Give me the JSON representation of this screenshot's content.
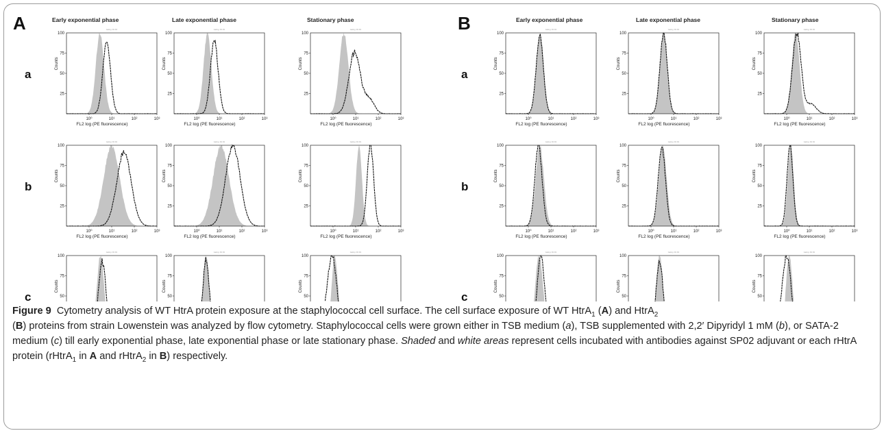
{
  "chart_data": {
    "type": "area",
    "figure_label": "Figure 9",
    "panels": [
      "A",
      "B"
    ],
    "columns": [
      "Early exponential phase",
      "Late exponential phase",
      "Stationary phase"
    ],
    "rows": [
      "a",
      "b",
      "c"
    ],
    "subtitle_text": "Gating: R1 R1",
    "xlabel": "FL2 log (PE fluorescence)",
    "ylabel": "Counts",
    "x_scale": "log",
    "x_ticks": [
      "10⁰",
      "10¹",
      "10²",
      "10³"
    ],
    "xlim": [
      0.1,
      1000
    ],
    "y_ticks": [
      25,
      50,
      75,
      100
    ],
    "ylim": [
      0,
      100
    ],
    "legend": "none",
    "grid": false,
    "series_styles": {
      "shaded": "#c4c4c4",
      "outline": "#111111"
    },
    "plots": [
      {
        "panel": "A",
        "row": "a",
        "column": "Early exponential phase",
        "shaded": {
          "peak_x": 3,
          "peak_y": 100,
          "width": 0.18
        },
        "outline": {
          "peak_x": 6,
          "peak_y": 88,
          "width": 0.17
        }
      },
      {
        "panel": "A",
        "row": "a",
        "column": "Late exponential phase",
        "shaded": {
          "peak_x": 3,
          "peak_y": 100,
          "width": 0.17
        },
        "outline": {
          "peak_x": 6,
          "peak_y": 90,
          "width": 0.17
        }
      },
      {
        "panel": "A",
        "row": "a",
        "column": "Stationary phase",
        "shaded": {
          "peak_x": 3,
          "peak_y": 100,
          "width": 0.2
        },
        "outline": {
          "peak_x": 9,
          "peak_y": 76,
          "width": 0.25,
          "tail_x": 40,
          "tail_y": 18
        }
      },
      {
        "panel": "A",
        "row": "b",
        "column": "Early exponential phase",
        "shaded": {
          "peak_x": 10,
          "peak_y": 100,
          "width": 0.35
        },
        "outline": {
          "peak_x": 35,
          "peak_y": 91,
          "width": 0.32
        }
      },
      {
        "panel": "A",
        "row": "b",
        "column": "Late exponential phase",
        "shaded": {
          "peak_x": 12,
          "peak_y": 100,
          "width": 0.35
        },
        "outline": {
          "peak_x": 40,
          "peak_y": 100,
          "width": 0.32
        }
      },
      {
        "panel": "A",
        "row": "b",
        "column": "Stationary phase",
        "shaded": {
          "peak_x": 14,
          "peak_y": 100,
          "width": 0.13
        },
        "outline": {
          "peak_x": 45,
          "peak_y": 100,
          "width": 0.14
        }
      },
      {
        "panel": "A",
        "row": "c",
        "column": "Early exponential phase",
        "shaded": {
          "peak_x": 3.2,
          "peak_y": 100,
          "width": 0.17
        },
        "outline": {
          "peak_x": 3.8,
          "peak_y": 93,
          "width": 0.17
        }
      },
      {
        "panel": "A",
        "row": "c",
        "column": "Late exponential phase",
        "shaded": {
          "peak_x": 2.6,
          "peak_y": 100,
          "width": 0.15
        },
        "outline": {
          "peak_x": 2.6,
          "peak_y": 95,
          "width": 0.15
        }
      },
      {
        "panel": "A",
        "row": "c",
        "column": "Stationary phase",
        "shaded": {
          "peak_x": 1.2,
          "peak_y": 100,
          "width": 0.15
        },
        "outline": {
          "peak_x": 0.9,
          "peak_y": 100,
          "width": 0.22,
          "low_tail": true
        }
      },
      {
        "panel": "B",
        "row": "a",
        "column": "Early exponential phase",
        "shaded": {
          "peak_x": 3.3,
          "peak_y": 100,
          "width": 0.16
        },
        "outline": {
          "peak_x": 3.2,
          "peak_y": 96,
          "width": 0.16
        }
      },
      {
        "panel": "B",
        "row": "a",
        "column": "Late exponential phase",
        "shaded": {
          "peak_x": 3.6,
          "peak_y": 100,
          "width": 0.16
        },
        "outline": {
          "peak_x": 3.6,
          "peak_y": 100,
          "width": 0.16
        }
      },
      {
        "panel": "B",
        "row": "a",
        "column": "Stationary phase",
        "shaded": {
          "peak_x": 2.5,
          "peak_y": 100,
          "width": 0.17
        },
        "outline": {
          "peak_x": 2.8,
          "peak_y": 100,
          "width": 0.19,
          "tail_x": 12,
          "tail_y": 12
        }
      },
      {
        "panel": "B",
        "row": "b",
        "column": "Early exponential phase",
        "shaded": {
          "peak_x": 3.2,
          "peak_y": 100,
          "width": 0.18
        },
        "outline": {
          "peak_x": 2.8,
          "peak_y": 100,
          "width": 0.16
        }
      },
      {
        "panel": "B",
        "row": "b",
        "column": "Late exponential phase",
        "shaded": {
          "peak_x": 3.3,
          "peak_y": 100,
          "width": 0.17
        },
        "outline": {
          "peak_x": 3.0,
          "peak_y": 98,
          "width": 0.16
        }
      },
      {
        "panel": "B",
        "row": "b",
        "column": "Stationary phase",
        "shaded": {
          "peak_x": 1.5,
          "peak_y": 100,
          "width": 0.13
        },
        "outline": {
          "peak_x": 1.4,
          "peak_y": 100,
          "width": 0.13
        }
      },
      {
        "panel": "B",
        "row": "c",
        "column": "Early exponential phase",
        "shaded": {
          "peak_x": 3.0,
          "peak_y": 100,
          "width": 0.18
        },
        "outline": {
          "peak_x": 3.6,
          "peak_y": 100,
          "width": 0.17
        }
      },
      {
        "panel": "B",
        "row": "c",
        "column": "Late exponential phase",
        "shaded": {
          "peak_x": 2.4,
          "peak_y": 100,
          "width": 0.16
        },
        "outline": {
          "peak_x": 2.4,
          "peak_y": 93,
          "width": 0.16
        }
      },
      {
        "panel": "B",
        "row": "c",
        "column": "Stationary phase",
        "shaded": {
          "peak_x": 1.3,
          "peak_y": 100,
          "width": 0.15
        },
        "outline": {
          "peak_x": 1.0,
          "peak_y": 100,
          "width": 0.2,
          "low_tail": true
        }
      }
    ]
  },
  "caption": {
    "label": "Figure 9",
    "s1": "Cytometry analysis of WT HtrA protein exposure at the staphylococcal cell surface. The cell surface exposure of WT HtrA",
    "sub_1": "1",
    "s2": "(",
    "A": "A",
    "s3": ") and HtrA",
    "sub_2": "2",
    "s4": "(",
    "B": "B",
    "s5": ") proteins from strain Lowenstein was analyzed by flow cytometry. Staphylococcal cells were grown either in TSB medium (",
    "i_a": "a",
    "s6": "), TSB supplemented with 2,2′ Dipyridyl 1 mM (",
    "i_b": "b",
    "s7": "), or SATA-2 medium (",
    "i_c": "c",
    "s8": ") till early exponential phase, late exponential phase or late stationary phase.",
    "i_shaded": "Shaded",
    "s9": "and",
    "i_white": "white areas",
    "s10": "represent cells incubated with antibodies against SP02 adjuvant or each rHtrA protein (rHtrA",
    "sub_3": "1",
    "s11": "in",
    "A2": "A",
    "s12": "and rHtrA",
    "sub_4": "2",
    "s13": "in",
    "B2": "B",
    "s14": ") respectively."
  }
}
